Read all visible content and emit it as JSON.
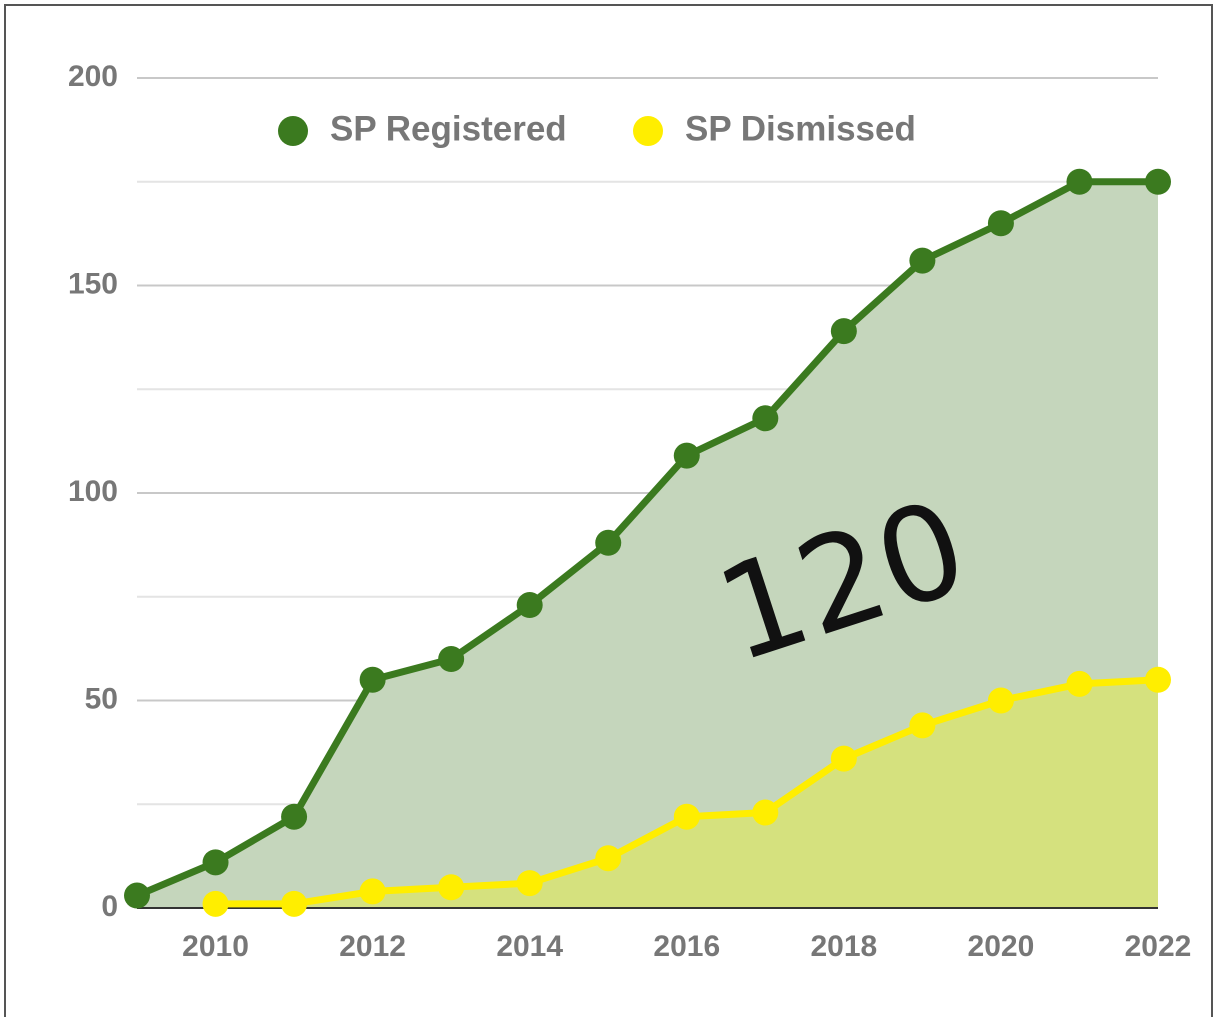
{
  "chart_data": {
    "type": "area",
    "x": [
      2009,
      2010,
      2011,
      2012,
      2013,
      2014,
      2015,
      2016,
      2017,
      2018,
      2019,
      2020,
      2021,
      2022
    ],
    "series": [
      {
        "name": "SP Registered",
        "color": "#3b7a1f",
        "fill": "#c5d6bc",
        "values": [
          3,
          11,
          22,
          55,
          60,
          73,
          88,
          109,
          118,
          139,
          156,
          165,
          175,
          175
        ]
      },
      {
        "name": "SP Dismissed",
        "color": "#ffee00",
        "fill": "#d5e17e",
        "values": [
          null,
          1,
          1,
          4,
          5,
          6,
          12,
          22,
          23,
          36,
          44,
          50,
          54,
          55
        ]
      }
    ],
    "xlim": [
      2009,
      2022
    ],
    "xticks": [
      2010,
      2012,
      2014,
      2016,
      2018,
      2020,
      2022
    ],
    "ylim": [
      0,
      200
    ],
    "yticks": [
      0,
      50,
      100,
      150,
      200
    ],
    "minor_yticks": [
      25,
      75,
      125,
      175
    ],
    "grid": true,
    "legend": "top",
    "annotation": "120"
  }
}
